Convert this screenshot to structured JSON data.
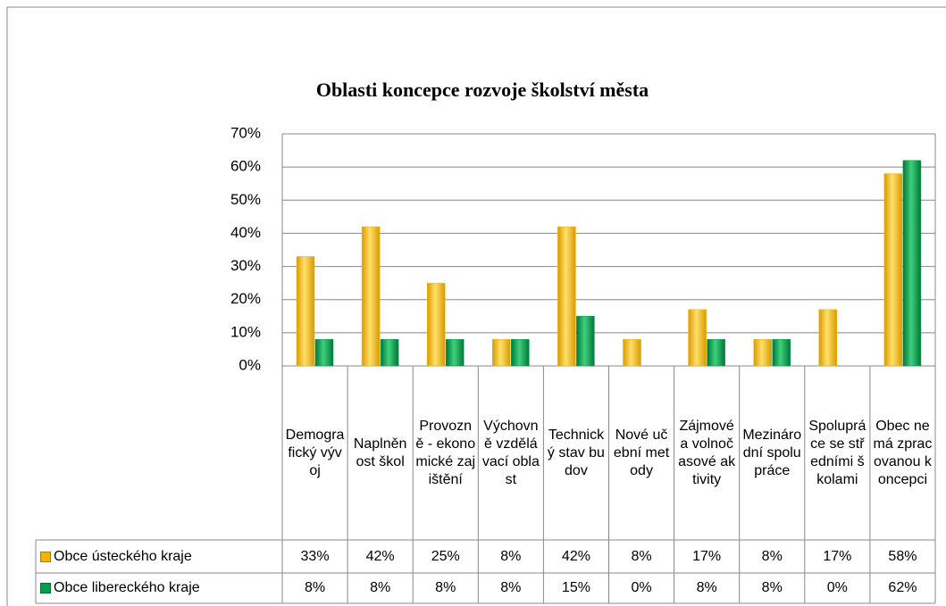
{
  "chart_data": {
    "type": "bar",
    "title": "Oblasti koncepce rozvoje školství města",
    "categories": [
      "Demografický vývoj",
      "Naplněnost škol",
      "Provozně - ekonomické zajištění",
      "Výchovně vzdělávací oblast",
      "Technický stav budov",
      "Nové učební metody",
      "Zájmové a volnočasové aktivity",
      "Mezinárodní spolupráce",
      "Spolupráce se středními školami",
      "Obec nemá zpracovanou koncepci"
    ],
    "series": [
      {
        "name": "Obce ústeckého kraje",
        "color": "#f2b400",
        "values": [
          33,
          42,
          25,
          8,
          42,
          8,
          17,
          8,
          17,
          58
        ],
        "value_labels": [
          "33%",
          "42%",
          "25%",
          "8%",
          "42%",
          "8%",
          "17%",
          "8%",
          "17%",
          "58%"
        ]
      },
      {
        "name": "Obce libereckého kraje",
        "color": "#00a04a",
        "values": [
          8,
          8,
          8,
          8,
          15,
          0,
          8,
          8,
          0,
          62
        ],
        "value_labels": [
          "8%",
          "8%",
          "8%",
          "8%",
          "15%",
          "0%",
          "8%",
          "8%",
          "0%",
          "62%"
        ]
      }
    ],
    "ylim": [
      0,
      70
    ],
    "yticks": [
      {
        "value": 0,
        "label": "0%"
      },
      {
        "value": 10,
        "label": "10%"
      },
      {
        "value": 20,
        "label": "20%"
      },
      {
        "value": 30,
        "label": "30%"
      },
      {
        "value": 40,
        "label": "40%"
      },
      {
        "value": 50,
        "label": "50%"
      },
      {
        "value": 60,
        "label": "60%"
      },
      {
        "value": 70,
        "label": "70%"
      }
    ],
    "grid": true
  }
}
